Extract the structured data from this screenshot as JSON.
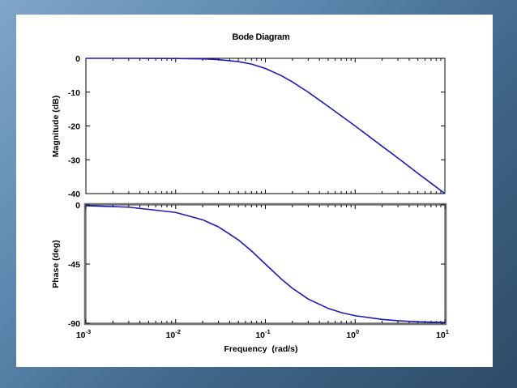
{
  "chart_data": [
    {
      "type": "line",
      "title": "Bode Diagram",
      "ylabel": "Magnitude (dB)",
      "xlabel": "",
      "xscale": "log",
      "xlim": [
        0.001,
        10
      ],
      "ylim": [
        -40,
        0
      ],
      "yticks": [
        "0",
        "-10",
        "-20",
        "-30",
        "-40"
      ],
      "grid": false,
      "series": [
        {
          "color": "#1a1ab8",
          "x": [
            0.001,
            0.003,
            0.01,
            0.02,
            0.03,
            0.05,
            0.07,
            0.1,
            0.15,
            0.2,
            0.3,
            0.5,
            0.7,
            1,
            2,
            3,
            5,
            7,
            10
          ],
          "y": [
            0,
            0,
            -0.04,
            -0.17,
            -0.37,
            -0.97,
            -1.7,
            -3.0,
            -5.1,
            -7.0,
            -10.0,
            -14.2,
            -17.0,
            -20.0,
            -26.0,
            -29.5,
            -34.0,
            -36.9,
            -40.0
          ]
        }
      ]
    },
    {
      "type": "line",
      "title": "",
      "ylabel": "Phase (deg)",
      "xlabel": "Frequency  (rad/s)",
      "xscale": "log",
      "xlim": [
        0.001,
        10
      ],
      "ylim": [
        -90,
        0
      ],
      "yticks": [
        "0",
        "-45",
        "-90"
      ],
      "xticks": [
        {
          "base": "10",
          "exp": "-3"
        },
        {
          "base": "10",
          "exp": "-2"
        },
        {
          "base": "10",
          "exp": "-1"
        },
        {
          "base": "10",
          "exp": "0"
        },
        {
          "base": "10",
          "exp": "1"
        }
      ],
      "grid": false,
      "series": [
        {
          "color": "#1a1ab8",
          "x": [
            0.001,
            0.003,
            0.01,
            0.02,
            0.03,
            0.05,
            0.07,
            0.1,
            0.15,
            0.2,
            0.3,
            0.5,
            0.7,
            1,
            2,
            3,
            5,
            7,
            10
          ],
          "y": [
            -0.6,
            -1.7,
            -5.7,
            -11.3,
            -16.7,
            -26.6,
            -35.0,
            -45.0,
            -56.3,
            -63.4,
            -71.6,
            -78.7,
            -81.9,
            -84.3,
            -87.1,
            -88.1,
            -88.9,
            -89.2,
            -89.4
          ]
        }
      ]
    }
  ]
}
